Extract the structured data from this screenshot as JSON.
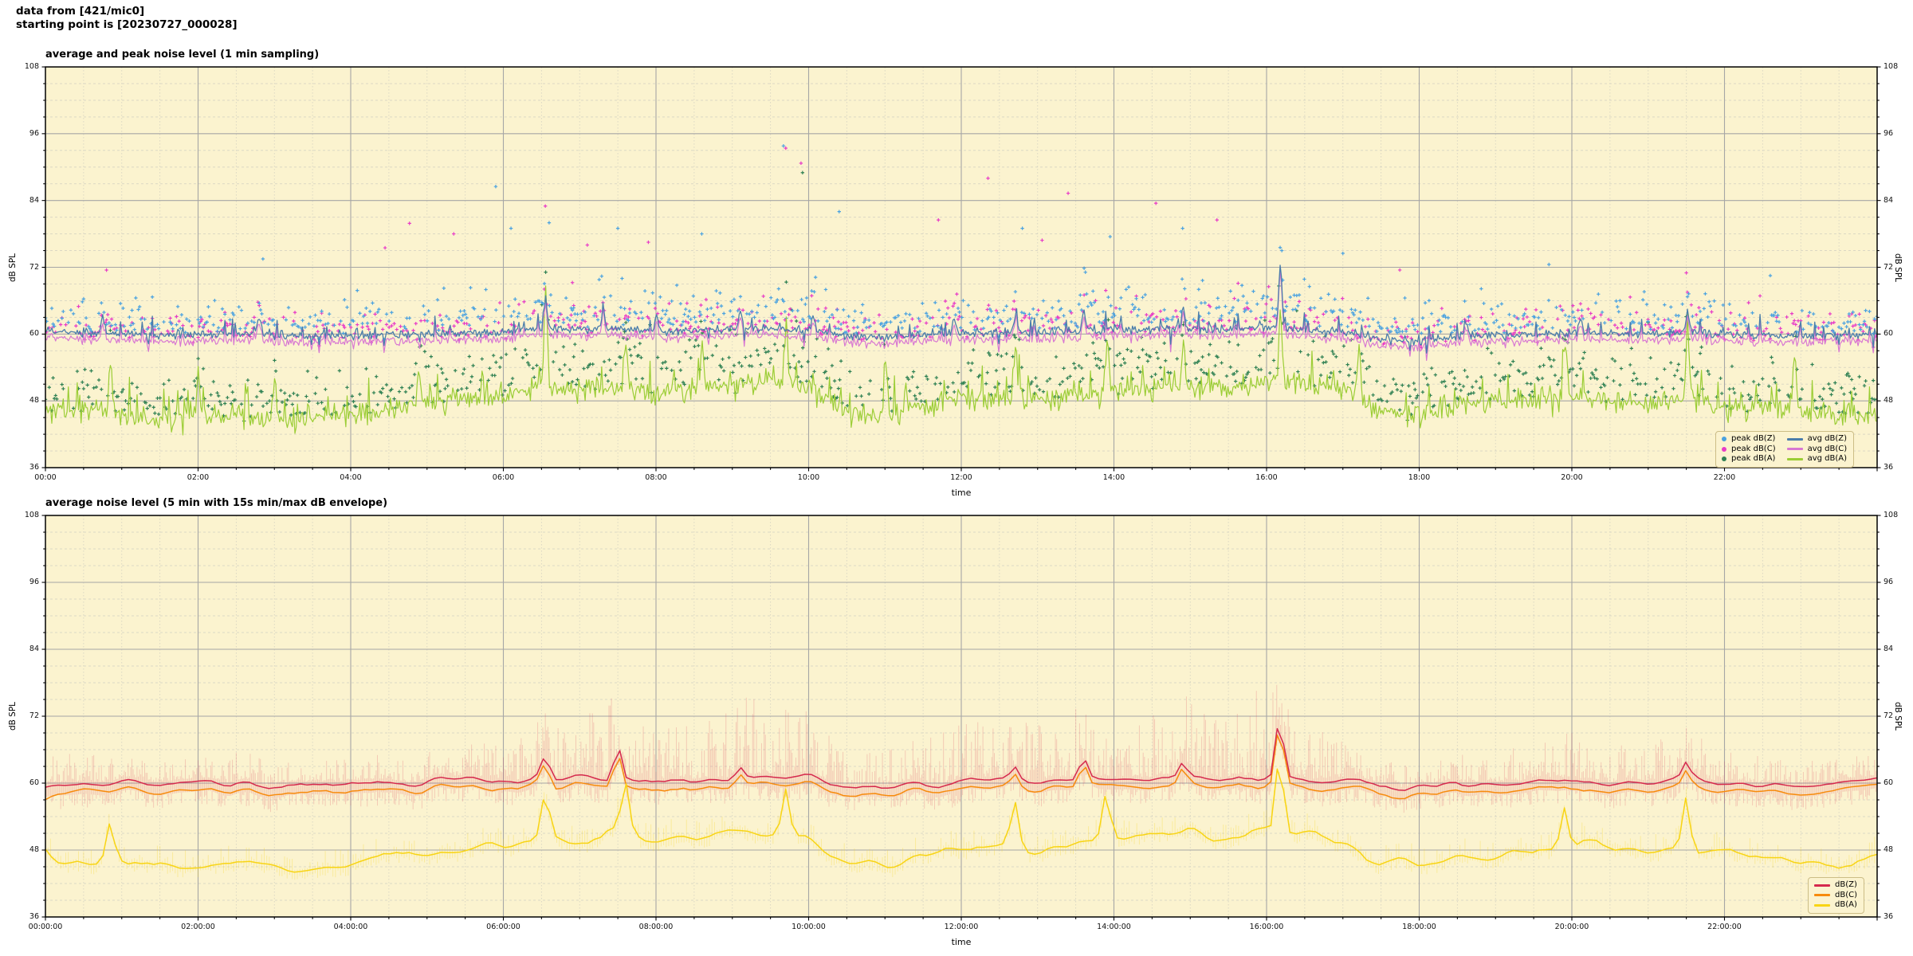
{
  "header": {
    "line1": "data from [421/mic0]",
    "line2": "starting point is [20230727_000028]"
  },
  "palette": {
    "plot_background": "#fbf3cf",
    "grid_major": "#a6a6a6",
    "grid_minor": "#d8d5c3",
    "spine": "#000000"
  },
  "chart_data": [
    {
      "type": "scatter+line",
      "title": "average and peak noise level (1 min sampling)",
      "xlabel": "time",
      "ylabel": "dB SPL",
      "ylabel_right": "dB SPL",
      "ylim": [
        36,
        108
      ],
      "yticks": [
        36,
        48,
        60,
        72,
        84,
        96,
        108
      ],
      "y_minor_step_db": 3,
      "xlim_hours": [
        0,
        24
      ],
      "x_minor_step_hours": 0.5,
      "xticks": [
        {
          "hour": 0,
          "label": "00:00"
        },
        {
          "hour": 2,
          "label": "02:00"
        },
        {
          "hour": 4,
          "label": "04:00"
        },
        {
          "hour": 6,
          "label": "06:00"
        },
        {
          "hour": 8,
          "label": "08:00"
        },
        {
          "hour": 10,
          "label": "10:00"
        },
        {
          "hour": 12,
          "label": "12:00"
        },
        {
          "hour": 14,
          "label": "14:00"
        },
        {
          "hour": 16,
          "label": "16:00"
        },
        {
          "hour": 18,
          "label": "18:00"
        },
        {
          "hour": 20,
          "label": "20:00"
        },
        {
          "hour": 22,
          "label": "22:00"
        }
      ],
      "legend": [
        {
          "label": "peak dB(Z)",
          "marker": "dot",
          "color": "#4aa2e0"
        },
        {
          "label": "peak dB(C)",
          "marker": "dot",
          "color": "#e83cc7"
        },
        {
          "label": "peak dB(A)",
          "marker": "dot",
          "color": "#2f8153"
        },
        {
          "label": "avg dB(Z)",
          "marker": "line",
          "color": "#4a7dab"
        },
        {
          "label": "avg dB(C)",
          "marker": "line",
          "color": "#d878d2"
        },
        {
          "label": "avg dB(A)",
          "marker": "line",
          "color": "#9bcd35"
        }
      ],
      "x_control_hours": [
        0,
        0.5,
        1,
        1.5,
        2,
        2.5,
        3,
        3.5,
        4,
        4.5,
        5,
        5.5,
        6,
        6.5,
        7,
        7.5,
        8,
        8.5,
        9,
        9.5,
        10,
        10.5,
        11,
        11.5,
        12,
        12.5,
        13,
        13.5,
        14,
        14.5,
        15,
        15.5,
        16,
        16.5,
        17,
        17.5,
        18,
        18.5,
        19,
        19.5,
        20,
        20.5,
        21,
        21.5,
        22,
        22.5,
        23,
        23.5,
        24
      ],
      "series": [
        {
          "name": "avg dB(Z)",
          "color": "#4a7dab",
          "values": [
            60.5,
            60.2,
            60.1,
            60.0,
            60.0,
            60.2,
            59.8,
            59.7,
            59.8,
            59.9,
            60.0,
            60.2,
            60.3,
            61.0,
            60.8,
            61.0,
            60.4,
            60.7,
            61.0,
            61.0,
            60.8,
            59.6,
            59.5,
            60.0,
            60.3,
            60.2,
            60.3,
            60.5,
            60.8,
            60.9,
            61.0,
            60.8,
            61.2,
            60.8,
            60.5,
            59.0,
            58.8,
            59.6,
            60.0,
            60.0,
            60.2,
            60.0,
            60.0,
            60.3,
            60.0,
            59.8,
            59.8,
            59.9,
            60.0
          ]
        },
        {
          "name": "avg dB(C)",
          "color": "#d878d2",
          "values": [
            59.3,
            59.0,
            58.9,
            58.8,
            58.8,
            59.0,
            58.6,
            58.5,
            58.6,
            58.7,
            58.8,
            59.0,
            59.1,
            59.8,
            59.6,
            59.8,
            59.2,
            59.5,
            59.8,
            59.8,
            59.6,
            58.4,
            58.3,
            58.8,
            59.1,
            59.0,
            59.1,
            59.3,
            59.6,
            59.7,
            59.8,
            59.6,
            60.0,
            59.6,
            59.3,
            57.8,
            57.6,
            58.4,
            58.8,
            58.8,
            59.0,
            58.8,
            58.8,
            59.1,
            58.8,
            58.6,
            58.6,
            58.7,
            58.8
          ]
        },
        {
          "name": "avg dB(A)",
          "color": "#9bcd35",
          "values": [
            46.5,
            46.0,
            45.5,
            44.5,
            45.0,
            45.5,
            44.5,
            45.0,
            45.5,
            46.5,
            47.5,
            48.5,
            49.0,
            50.5,
            50.0,
            51.0,
            49.5,
            50.0,
            51.0,
            51.5,
            50.5,
            46.0,
            45.5,
            47.0,
            48.5,
            48.0,
            48.5,
            49.0,
            50.0,
            50.5,
            51.0,
            50.5,
            52.0,
            51.0,
            50.0,
            46.0,
            45.5,
            47.0,
            48.0,
            48.5,
            49.0,
            48.0,
            47.5,
            48.5,
            47.0,
            46.5,
            46.0,
            45.5,
            45.5
          ]
        }
      ],
      "spikes": {
        "z": [
          [
            0.75,
            63.2
          ],
          [
            2.8,
            63.5
          ],
          [
            6.55,
            66.3
          ],
          [
            7.3,
            63.6
          ],
          [
            8.0,
            63.0
          ],
          [
            9.1,
            63.9
          ],
          [
            10.05,
            63.0
          ],
          [
            11.9,
            62.8
          ],
          [
            12.7,
            63.2
          ],
          [
            13.6,
            64.0
          ],
          [
            14.9,
            64.8
          ],
          [
            16.17,
            72.4
          ],
          [
            18.6,
            62.6
          ],
          [
            20.1,
            62.8
          ],
          [
            21.5,
            63.5
          ]
        ],
        "a": [
          [
            0.85,
            54.5
          ],
          [
            2.0,
            52.5
          ],
          [
            3.0,
            52.0
          ],
          [
            4.9,
            53.0
          ],
          [
            6.55,
            68.5
          ],
          [
            7.6,
            59.5
          ],
          [
            8.6,
            58.0
          ],
          [
            9.7,
            62.0
          ],
          [
            11.0,
            55.0
          ],
          [
            12.7,
            57.5
          ],
          [
            13.9,
            58.5
          ],
          [
            14.9,
            58.5
          ],
          [
            16.17,
            65.0
          ],
          [
            17.2,
            57.0
          ],
          [
            19.9,
            58.5
          ],
          [
            21.5,
            60.0
          ],
          [
            22.9,
            56.5
          ]
        ]
      },
      "peaks_scatter": {
        "z": {
          "color": "#4aa2e0",
          "typical_offset_above_avg_db": [
            1,
            12
          ]
        },
        "c": {
          "color": "#e83cc7",
          "typical_offset_above_avg_db": [
            0.5,
            11
          ]
        },
        "a": {
          "color": "#2f8153",
          "typical_offset_above_avg_db": [
            1,
            12
          ]
        },
        "outliers": [
          [
            0.8,
            71.5,
            "C"
          ],
          [
            2.85,
            73.5,
            "Z"
          ],
          [
            4.45,
            75.5,
            "C"
          ],
          [
            5.35,
            78.0,
            "C"
          ],
          [
            5.9,
            86.5,
            "Z"
          ],
          [
            6.1,
            79.0,
            "Z"
          ],
          [
            6.55,
            83.0,
            "C"
          ],
          [
            6.6,
            80.0,
            "Z"
          ],
          [
            7.1,
            76.0,
            "C"
          ],
          [
            7.5,
            79.0,
            "Z"
          ],
          [
            7.9,
            76.5,
            "C"
          ],
          [
            8.6,
            78.0,
            "Z"
          ],
          [
            9.67,
            93.8,
            "Z"
          ],
          [
            9.7,
            93.4,
            "C"
          ],
          [
            9.9,
            90.7,
            "C"
          ],
          [
            9.92,
            89.0,
            "A"
          ],
          [
            10.4,
            82.0,
            "Z"
          ],
          [
            11.7,
            80.5,
            "C"
          ],
          [
            12.35,
            88.0,
            "C"
          ],
          [
            12.8,
            79.0,
            "Z"
          ],
          [
            13.4,
            85.3,
            "C"
          ],
          [
            13.95,
            77.5,
            "Z"
          ],
          [
            14.55,
            83.5,
            "C"
          ],
          [
            14.9,
            79.0,
            "Z"
          ],
          [
            15.35,
            80.5,
            "C"
          ],
          [
            16.2,
            75.0,
            "Z"
          ],
          [
            17.0,
            74.5,
            "Z"
          ],
          [
            19.7,
            72.5,
            "Z"
          ],
          [
            21.5,
            71.0,
            "C"
          ],
          [
            22.6,
            70.5,
            "Z"
          ]
        ]
      }
    },
    {
      "type": "line+envelope",
      "title": "average noise level (5 min with 15s min/max dB envelope)",
      "xlabel": "time",
      "ylabel": "dB SPL",
      "ylabel_right": "dB SPL",
      "ylim": [
        36,
        108
      ],
      "yticks": [
        36,
        48,
        60,
        72,
        84,
        96,
        108
      ],
      "y_minor_step_db": 3,
      "xlim_hours": [
        0,
        24
      ],
      "x_minor_step_hours": 0.5,
      "xticks": [
        {
          "hour": 0,
          "label": "00:00:00"
        },
        {
          "hour": 2,
          "label": "02:00:00"
        },
        {
          "hour": 4,
          "label": "04:00:00"
        },
        {
          "hour": 6,
          "label": "06:00:00"
        },
        {
          "hour": 8,
          "label": "08:00:00"
        },
        {
          "hour": 10,
          "label": "10:00:00"
        },
        {
          "hour": 12,
          "label": "12:00:00"
        },
        {
          "hour": 14,
          "label": "14:00:00"
        },
        {
          "hour": 16,
          "label": "16:00:00"
        },
        {
          "hour": 18,
          "label": "18:00:00"
        },
        {
          "hour": 20,
          "label": "20:00:00"
        },
        {
          "hour": 22,
          "label": "22:00:00"
        }
      ],
      "legend": [
        {
          "label": "dB(Z)",
          "marker": "line",
          "color": "#d5294d"
        },
        {
          "label": "dB(C)",
          "marker": "line",
          "color": "#f78b0c"
        },
        {
          "label": "dB(A)",
          "marker": "line",
          "color": "#f8d414"
        }
      ],
      "x_control_hours": [
        0,
        0.5,
        1,
        1.5,
        2,
        2.5,
        3,
        3.5,
        4,
        4.5,
        5,
        5.5,
        6,
        6.5,
        7,
        7.5,
        8,
        8.5,
        9,
        9.5,
        10,
        10.5,
        11,
        11.5,
        12,
        12.5,
        13,
        13.5,
        14,
        14.5,
        15,
        15.5,
        16,
        16.5,
        17,
        17.5,
        18,
        18.5,
        19,
        19.5,
        20,
        20.5,
        21,
        21.5,
        22,
        22.5,
        23,
        23.5,
        24
      ],
      "series": [
        {
          "name": "dB(Z)",
          "color": "#d5294d",
          "values": [
            60.5,
            60.2,
            60.1,
            60.0,
            60.0,
            60.2,
            59.8,
            59.7,
            59.8,
            59.9,
            60.0,
            60.2,
            60.3,
            61.0,
            60.8,
            61.0,
            60.4,
            60.7,
            61.0,
            61.0,
            60.8,
            59.6,
            59.5,
            60.0,
            60.3,
            60.2,
            60.3,
            60.5,
            60.8,
            60.9,
            61.0,
            60.8,
            61.2,
            60.8,
            60.5,
            59.0,
            58.8,
            59.6,
            60.0,
            60.0,
            60.2,
            60.0,
            60.0,
            60.3,
            60.0,
            59.8,
            59.8,
            59.9,
            60.0
          ]
        },
        {
          "name": "dB(C)",
          "color": "#f78b0c",
          "values": [
            59.2,
            58.9,
            58.8,
            58.7,
            58.7,
            58.9,
            58.5,
            58.4,
            58.5,
            58.6,
            58.7,
            58.9,
            59.0,
            59.7,
            59.5,
            59.7,
            59.1,
            59.4,
            59.7,
            59.7,
            59.5,
            58.3,
            58.2,
            58.7,
            59.0,
            58.9,
            59.0,
            59.2,
            59.5,
            59.6,
            59.7,
            59.5,
            59.9,
            59.5,
            59.2,
            57.7,
            57.5,
            58.3,
            58.7,
            58.7,
            58.9,
            58.7,
            58.7,
            59.0,
            58.7,
            58.5,
            58.5,
            58.6,
            58.7
          ]
        },
        {
          "name": "dB(A)",
          "color": "#f8d414",
          "values": [
            46.5,
            46.0,
            45.5,
            44.5,
            45.0,
            45.5,
            44.5,
            45.0,
            45.5,
            46.5,
            47.5,
            48.5,
            49.0,
            50.5,
            50.0,
            51.0,
            49.5,
            50.0,
            51.0,
            51.5,
            50.5,
            46.0,
            45.5,
            47.0,
            48.5,
            48.0,
            48.5,
            49.0,
            50.0,
            50.5,
            51.0,
            50.5,
            52.0,
            51.0,
            50.0,
            46.0,
            45.5,
            47.0,
            48.0,
            48.5,
            49.0,
            48.0,
            47.5,
            48.5,
            47.0,
            46.5,
            46.0,
            45.5,
            45.5
          ]
        }
      ],
      "spikes": {
        "z": [
          [
            6.55,
            64.5
          ],
          [
            7.5,
            67.0
          ],
          [
            9.1,
            63.0
          ],
          [
            12.7,
            62.5
          ],
          [
            13.6,
            64.3
          ],
          [
            14.9,
            63.6
          ],
          [
            16.17,
            71.8
          ],
          [
            21.5,
            62.8
          ]
        ],
        "a": [
          [
            0.85,
            52.0
          ],
          [
            6.55,
            58.0
          ],
          [
            7.6,
            59.0
          ],
          [
            9.7,
            59.5
          ],
          [
            12.7,
            56.0
          ],
          [
            13.9,
            57.5
          ],
          [
            16.17,
            65.3
          ],
          [
            19.9,
            56.5
          ],
          [
            21.5,
            58.0
          ]
        ]
      },
      "envelope": {
        "color": "#d5294d",
        "alpha": 0.2,
        "min_below_line_db": 3,
        "max_above_db_by_halfhour": [
          5,
          5,
          4,
          4,
          4,
          5,
          4,
          4,
          4,
          4,
          5,
          6,
          7,
          12,
          10,
          14,
          9,
          10,
          12,
          13,
          11,
          6,
          6,
          8,
          10,
          9,
          10,
          10,
          11,
          11,
          12,
          10,
          15,
          9,
          8,
          5,
          4,
          5,
          6,
          6,
          8,
          6,
          6,
          8,
          5,
          5,
          4,
          4,
          4
        ]
      }
    }
  ]
}
